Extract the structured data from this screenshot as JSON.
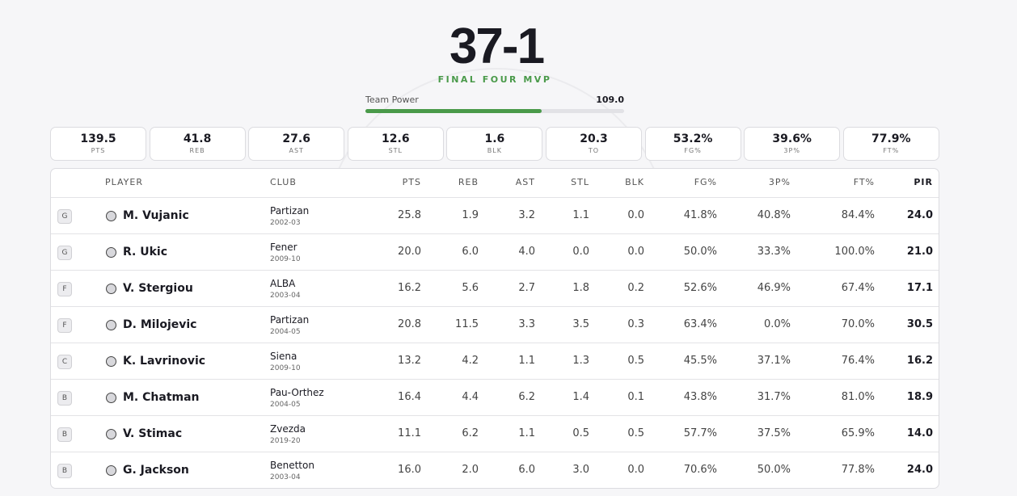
{
  "header": {
    "record": "37-1",
    "badge": "FINAL FOUR MVP",
    "power_label": "Team Power",
    "power_value": "109.0"
  },
  "tiles": [
    {
      "value": "139.5",
      "label": "PTS"
    },
    {
      "value": "41.8",
      "label": "REB"
    },
    {
      "value": "27.6",
      "label": "AST"
    },
    {
      "value": "12.6",
      "label": "STL"
    },
    {
      "value": "1.6",
      "label": "BLK"
    },
    {
      "value": "20.3",
      "label": "TO"
    },
    {
      "value": "53.2%",
      "label": "FG%"
    },
    {
      "value": "39.6%",
      "label": "3P%"
    },
    {
      "value": "77.9%",
      "label": "FT%"
    }
  ],
  "table": {
    "columns": [
      "PLAYER",
      "CLUB",
      "PTS",
      "REB",
      "AST",
      "STL",
      "BLK",
      "FG%",
      "3P%",
      "FT%",
      "PIR"
    ],
    "rows": [
      {
        "position": "G",
        "player": "M. Vujanic",
        "club": "Partizan",
        "season": "2002-03",
        "stats": [
          "25.8",
          "1.9",
          "3.2",
          "1.1",
          "0.0",
          "41.8%",
          "40.8%",
          "84.4%",
          "24.0"
        ]
      },
      {
        "position": "G",
        "player": "R. Ukic",
        "club": "Fener",
        "season": "2009-10",
        "stats": [
          "20.0",
          "6.0",
          "4.0",
          "0.0",
          "0.0",
          "50.0%",
          "33.3%",
          "100.0%",
          "21.0"
        ]
      },
      {
        "position": "F",
        "player": "V. Stergiou",
        "club": "ALBA",
        "season": "2003-04",
        "stats": [
          "16.2",
          "5.6",
          "2.7",
          "1.8",
          "0.2",
          "52.6%",
          "46.9%",
          "67.4%",
          "17.1"
        ]
      },
      {
        "position": "F",
        "player": "D. Milojevic",
        "club": "Partizan",
        "season": "2004-05",
        "stats": [
          "20.8",
          "11.5",
          "3.3",
          "3.5",
          "0.3",
          "63.4%",
          "0.0%",
          "70.0%",
          "30.5"
        ]
      },
      {
        "position": "C",
        "player": "K. Lavrinovic",
        "club": "Siena",
        "season": "2009-10",
        "stats": [
          "13.2",
          "4.2",
          "1.1",
          "1.3",
          "0.5",
          "45.5%",
          "37.1%",
          "76.4%",
          "16.2"
        ]
      },
      {
        "position": "B",
        "player": "M. Chatman",
        "club": "Pau-Orthez",
        "season": "2004-05",
        "stats": [
          "16.4",
          "4.4",
          "6.2",
          "1.4",
          "0.1",
          "43.8%",
          "31.7%",
          "81.0%",
          "18.9"
        ]
      },
      {
        "position": "B",
        "player": "V. Stimac",
        "club": "Zvezda",
        "season": "2019-20",
        "stats": [
          "11.1",
          "6.2",
          "1.1",
          "0.5",
          "0.5",
          "57.7%",
          "37.5%",
          "65.9%",
          "14.0"
        ]
      },
      {
        "position": "B",
        "player": "G. Jackson",
        "club": "Benetton",
        "season": "2003-04",
        "stats": [
          "16.0",
          "2.0",
          "6.0",
          "3.0",
          "0.0",
          "70.6%",
          "50.0%",
          "77.8%",
          "24.0"
        ]
      }
    ]
  }
}
